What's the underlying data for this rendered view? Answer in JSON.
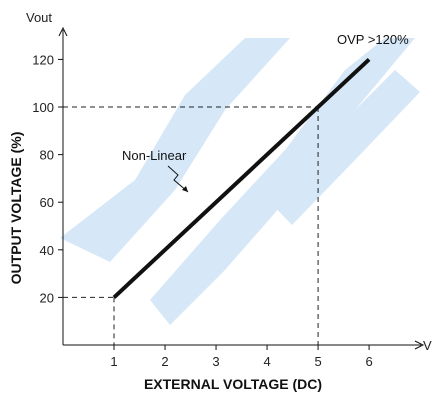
{
  "chart_data": {
    "type": "line",
    "xlabel": "EXTERNAL VOLTAGE (DC)",
    "ylabel": "OUTPUT VOLTAGE (%)",
    "x_axis_end_label": "V",
    "y_axis_top_label": "Vout",
    "x_ticks": [
      1,
      2,
      3,
      4,
      5,
      6
    ],
    "y_ticks": [
      20,
      40,
      60,
      80,
      100,
      120
    ],
    "xlim": [
      0,
      6.9
    ],
    "ylim": [
      0,
      129
    ],
    "series": [
      {
        "x": [
          1,
          6
        ],
        "y": [
          20,
          120
        ]
      }
    ],
    "reference_lines": [
      {
        "x": 1,
        "y": 20
      },
      {
        "x": 5,
        "y": 100
      }
    ],
    "annotations": [
      {
        "text": "Non-Linear",
        "x": 2.5,
        "y": 60
      },
      {
        "text": "OVP >120%",
        "x": 5.9,
        "y": 123
      }
    ],
    "grid": false,
    "legend": "none",
    "line_color": "#111111",
    "watermark_color": "#cfe3f7"
  }
}
